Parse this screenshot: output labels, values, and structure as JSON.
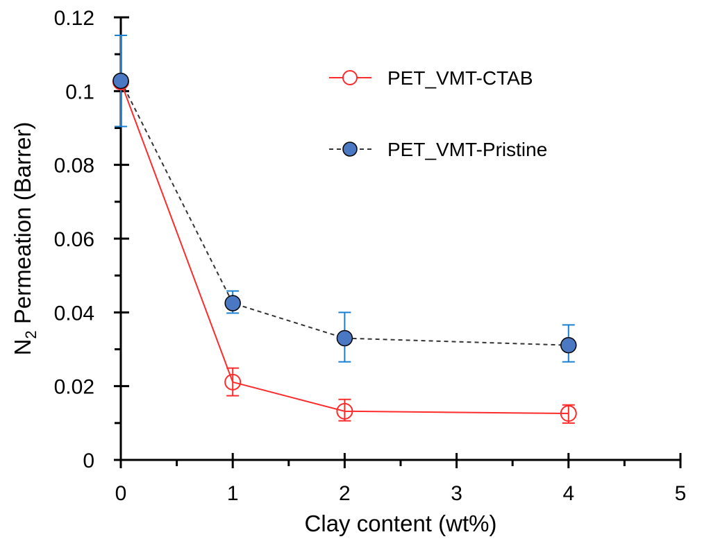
{
  "chart_data": {
    "type": "line",
    "title": "",
    "xlabel": "Clay content (wt%)",
    "ylabel_main": "N",
    "ylabel_sub": "2",
    "ylabel_rest": " Permeation (Barrer)",
    "xlim": [
      0,
      5
    ],
    "ylim": [
      0,
      0.12
    ],
    "x_ticks": [
      0,
      1,
      2,
      3,
      4,
      5
    ],
    "x_tick_labels": [
      "0",
      "1",
      "2",
      "3",
      "4",
      "5"
    ],
    "y_ticks": [
      0,
      0.02,
      0.04,
      0.06,
      0.08,
      0.1,
      0.12
    ],
    "y_tick_labels": [
      "0",
      "0.02",
      "0.04",
      "0.06",
      "0.08",
      "0.1",
      "0.12"
    ],
    "grid": false,
    "legend_position": "top-right",
    "series": [
      {
        "name": "PET_VMT-CTAB",
        "color": "#ff2a2a",
        "marker": "open-circle",
        "line_style": "solid",
        "x": [
          0,
          1,
          2,
          4
        ],
        "y": [
          0.1025,
          0.0211,
          0.0132,
          0.0126
        ],
        "err_low": [
          0.1025,
          0.0174,
          0.0106,
          0.01
        ],
        "err_high": [
          0.1025,
          0.0249,
          0.0164,
          0.0149
        ]
      },
      {
        "name": "PET_VMT-Pristine",
        "color": "#4a78c2",
        "edge_color": "#000000",
        "error_color": "#1a7fd0",
        "line_color": "#333333",
        "marker": "filled-circle",
        "line_style": "dashed",
        "x": [
          0,
          1,
          2,
          4
        ],
        "y": [
          0.1028,
          0.0425,
          0.033,
          0.0311
        ],
        "err_low": [
          0.0904,
          0.0398,
          0.0266,
          0.0266
        ],
        "err_high": [
          0.1151,
          0.0458,
          0.04,
          0.0366
        ]
      }
    ]
  }
}
